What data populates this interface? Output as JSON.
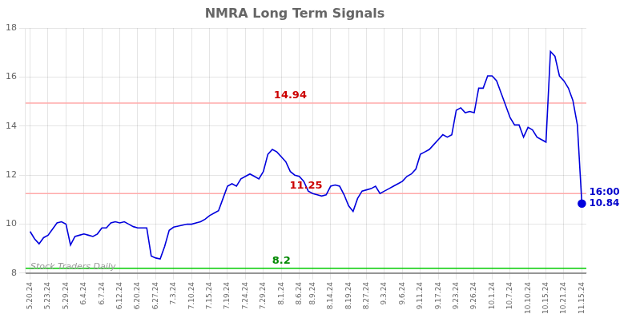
{
  "chart_data": {
    "type": "line",
    "title": "NMRA Long Term Signals",
    "categories": [
      "5.20.24",
      null,
      null,
      null,
      "5.23.24",
      null,
      null,
      null,
      "5.29.24",
      null,
      null,
      null,
      "6.4.24",
      null,
      null,
      null,
      "6.7.24",
      null,
      null,
      null,
      "6.12.24",
      null,
      null,
      null,
      "6.20.24",
      null,
      null,
      null,
      "6.27.24",
      null,
      null,
      null,
      "7.3.24",
      null,
      null,
      null,
      "7.10.24",
      null,
      null,
      null,
      "7.15.24",
      null,
      null,
      null,
      "7.19.24",
      null,
      null,
      null,
      "7.24.24",
      null,
      null,
      null,
      "7.29.24",
      null,
      null,
      null,
      "8.1.24",
      null,
      null,
      null,
      "8.6.24",
      null,
      null,
      "8.9.24",
      null,
      null,
      null,
      "8.14.24",
      null,
      null,
      null,
      "8.19.24",
      null,
      null,
      null,
      "8.27.24",
      null,
      null,
      null,
      "9.3.24",
      null,
      null,
      null,
      "9.6.24",
      null,
      null,
      null,
      "9.11.24",
      null,
      null,
      null,
      "9.17.24",
      null,
      null,
      null,
      "9.23.24",
      null,
      null,
      null,
      "9.26.24",
      null,
      null,
      null,
      "10.1.24",
      null,
      null,
      null,
      "10.7.24",
      null,
      null,
      null,
      "10.10.24",
      null,
      null,
      null,
      "10.15.24",
      null,
      null,
      null,
      "10.21.24",
      null,
      null,
      null,
      "11.15.24"
    ],
    "values": [
      9.7,
      9.4,
      9.2,
      9.45,
      9.55,
      9.8,
      10.05,
      10.1,
      10.0,
      9.15,
      9.5,
      9.55,
      9.6,
      9.55,
      9.5,
      9.6,
      9.85,
      9.85,
      10.05,
      10.1,
      10.05,
      10.1,
      10.0,
      9.9,
      9.85,
      9.85,
      9.85,
      8.7,
      8.62,
      8.58,
      9.1,
      9.75,
      9.88,
      9.92,
      9.96,
      10.0,
      10.0,
      10.05,
      10.1,
      10.2,
      10.35,
      10.45,
      10.55,
      11.05,
      11.55,
      11.65,
      11.55,
      11.85,
      11.95,
      12.05,
      11.95,
      11.85,
      12.15,
      12.85,
      13.05,
      12.95,
      12.75,
      12.55,
      12.15,
      12.0,
      11.95,
      11.75,
      11.35,
      11.25,
      11.2,
      11.15,
      11.2,
      11.55,
      11.6,
      11.55,
      11.2,
      10.75,
      10.52,
      11.05,
      11.35,
      11.4,
      11.45,
      11.55,
      11.25,
      11.35,
      11.45,
      11.55,
      11.65,
      11.75,
      11.95,
      12.05,
      12.25,
      12.85,
      12.95,
      13.05,
      13.25,
      13.45,
      13.65,
      13.55,
      13.65,
      14.65,
      14.75,
      14.55,
      14.6,
      14.55,
      15.55,
      15.55,
      16.05,
      16.05,
      15.85,
      15.35,
      14.85,
      14.35,
      14.05,
      14.05,
      13.55,
      13.95,
      13.85,
      13.55,
      13.45,
      13.35,
      17.05,
      16.85,
      16.05,
      15.85,
      15.55,
      15.05,
      14.05,
      10.84
    ],
    "color": "#0000dd",
    "ylim": [
      8,
      18
    ],
    "yticks": [
      8,
      10,
      12,
      14,
      16,
      18
    ],
    "grid": true,
    "reference_lines": [
      {
        "value": 14.94,
        "color": "#ffaaaa",
        "label": "14.94",
        "label_color": "#cc0000"
      },
      {
        "value": 11.25,
        "color": "#ffaaaa",
        "label": "11.25",
        "label_color": "#cc0000"
      },
      {
        "value": 8.2,
        "color": "#00cc00",
        "label": "8.2",
        "label_color": "#008800"
      },
      {
        "value": 8.0,
        "color": "#777777"
      }
    ],
    "last_point_labels": {
      "texts": [
        "16:00",
        "10.84"
      ],
      "color": "#0000cc"
    },
    "watermark": {
      "text": "Stock Traders Daily",
      "color": "#999999"
    }
  }
}
